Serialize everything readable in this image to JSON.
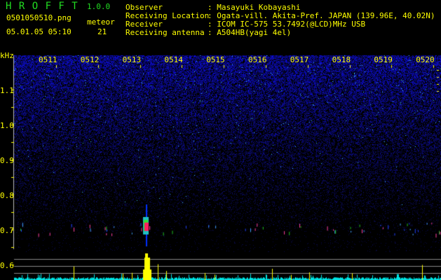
{
  "header": {
    "app_title": "H R O F F T",
    "version": "1.0.0",
    "filename": "0501050510.png",
    "datetime": "05.01.05 05:10",
    "meteor_label": "meteor",
    "meteor_count": "21",
    "info": [
      {
        "label": "Observer",
        "value": ": Masayuki Kobayashi"
      },
      {
        "label": "Receiving Location",
        "value": ": Ogata-vill. Akita-Pref. JAPAN (139.96E, 40.02N)"
      },
      {
        "label": "Receiver",
        "value": ": ICOM IC-575 53.7492(@LCD)MHz USB"
      },
      {
        "label": "Receiving antenna",
        "value": ": A504HB(yagi 4el)"
      }
    ]
  },
  "spectrogram": {
    "y_unit": "kHz",
    "y_ticks": [
      "1.1",
      "1.0",
      "0.9",
      "0.8",
      "0.7",
      "0.6"
    ],
    "time_ticks": [
      "0511",
      "0512",
      "0513",
      "0514",
      "0515",
      "0516",
      "0517",
      "0518",
      "0519",
      "0520"
    ],
    "colors": {
      "text": "#ffff00",
      "title": "#22dd22",
      "noise": "#1a1aff",
      "profile": "#00e5e5",
      "meteor_bar": "#ffff00"
    }
  }
}
